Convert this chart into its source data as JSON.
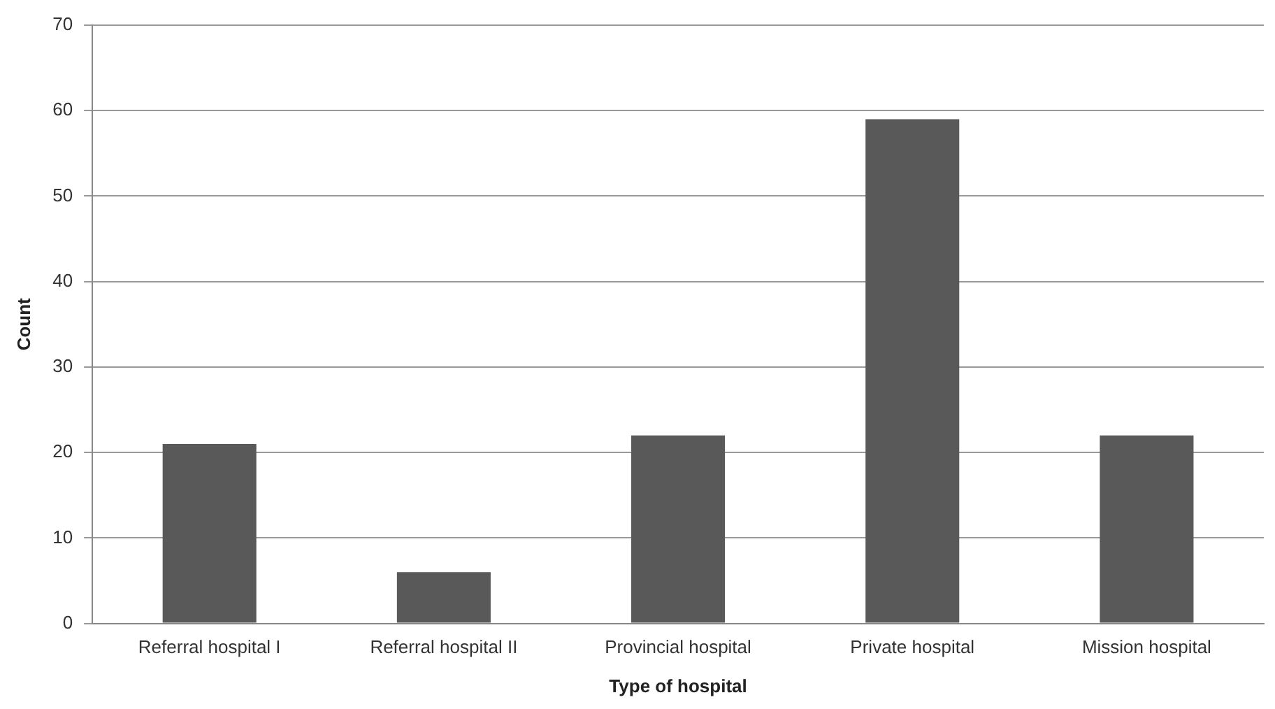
{
  "chart_data": {
    "type": "bar",
    "xlabel": "Type of hospital",
    "ylabel": "Count",
    "categories": [
      "Referral hospital I",
      "Referral hospital II",
      "Provincial hospital",
      "Private hospital",
      "Mission hospital"
    ],
    "values": [
      21,
      6,
      22,
      59,
      22
    ],
    "color": "#595959",
    "ylim": [
      0,
      70
    ],
    "yticks": [
      0,
      10,
      20,
      30,
      40,
      50,
      60,
      70
    ],
    "grid": "y",
    "legend": false
  }
}
